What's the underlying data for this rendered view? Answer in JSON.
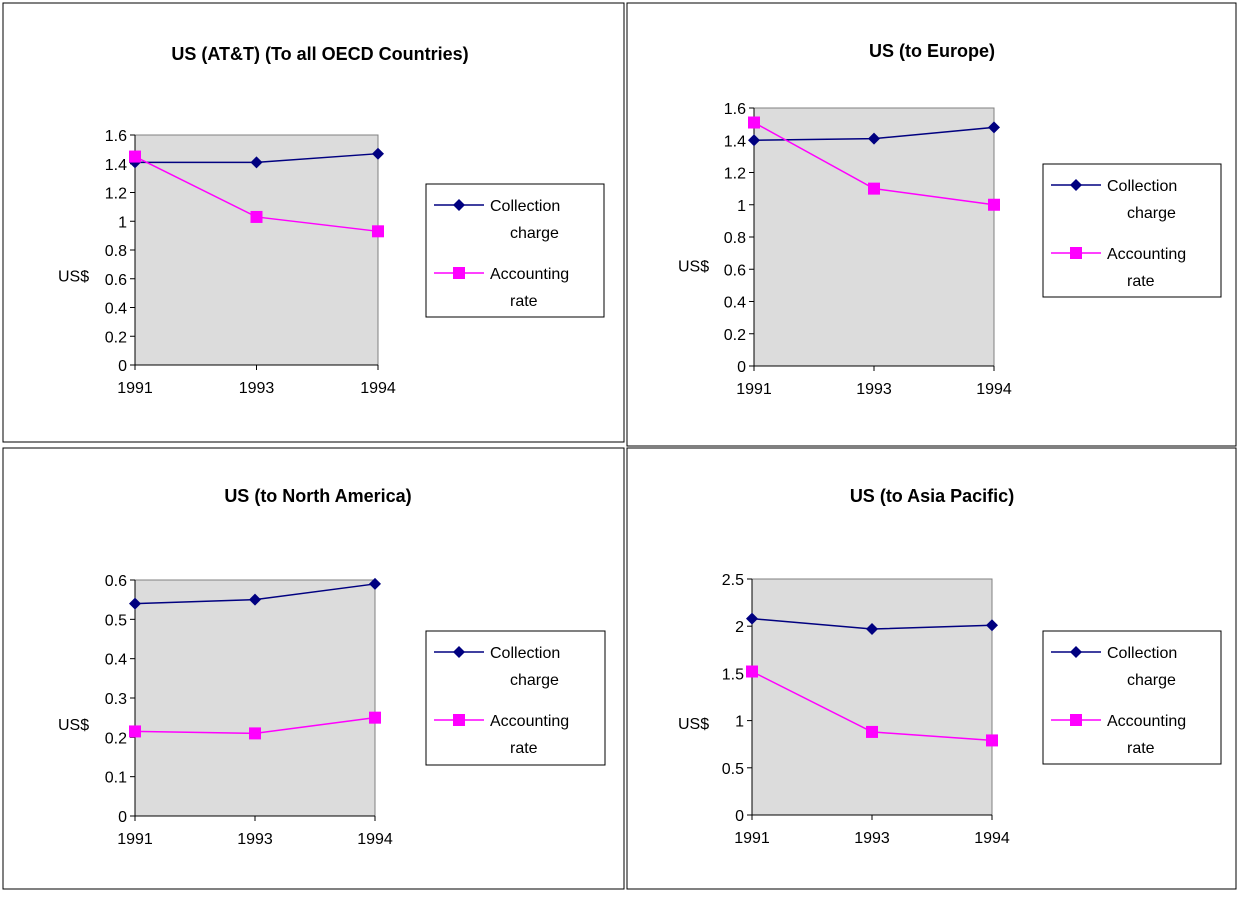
{
  "chart_data": [
    {
      "type": "line",
      "title": "US (AT&T) (To all OECD Countries)",
      "ylabel": "US$",
      "categories": [
        "1991",
        "1993",
        "1994"
      ],
      "ylim": [
        0,
        1.6
      ],
      "yticks": [
        "0",
        "0.2",
        "0.4",
        "0.6",
        "0.8",
        "1",
        "1.2",
        "1.4",
        "1.6"
      ],
      "series": [
        {
          "name": "Collection charge",
          "values": [
            1.41,
            1.41,
            1.47
          ],
          "color": "#000080",
          "marker": "diamond"
        },
        {
          "name": "Accounting rate",
          "values": [
            1.45,
            1.03,
            0.93
          ],
          "color": "#FF00FF",
          "marker": "square"
        }
      ],
      "legend_lines": [
        [
          "Collection",
          "charge"
        ],
        [
          "Accounting",
          "rate"
        ]
      ],
      "legend": "right"
    },
    {
      "type": "line",
      "title": "US (to Europe)",
      "ylabel": "US$",
      "categories": [
        "1991",
        "1993",
        "1994"
      ],
      "ylim": [
        0,
        1.6
      ],
      "yticks": [
        "0",
        "0.2",
        "0.4",
        "0.6",
        "0.8",
        "1",
        "1.2",
        "1.4",
        "1.6"
      ],
      "series": [
        {
          "name": "Collection charge",
          "values": [
            1.4,
            1.41,
            1.48
          ],
          "color": "#000080",
          "marker": "diamond"
        },
        {
          "name": "Accounting rate",
          "values": [
            1.51,
            1.1,
            1.0
          ],
          "color": "#FF00FF",
          "marker": "square"
        }
      ],
      "legend_lines": [
        [
          "Collection",
          "charge"
        ],
        [
          "Accounting",
          "rate"
        ]
      ],
      "legend": "right"
    },
    {
      "type": "line",
      "title": "US (to North America)",
      "ylabel": "US$",
      "categories": [
        "1991",
        "1993",
        "1994"
      ],
      "ylim": [
        0,
        0.6
      ],
      "yticks": [
        "0",
        "0.1",
        "0.2",
        "0.3",
        "0.4",
        "0.5",
        "0.6"
      ],
      "series": [
        {
          "name": "Collection charge",
          "values": [
            0.54,
            0.55,
            0.59
          ],
          "color": "#000080",
          "marker": "diamond"
        },
        {
          "name": "Accounting rate",
          "values": [
            0.215,
            0.21,
            0.25
          ],
          "color": "#FF00FF",
          "marker": "square"
        }
      ],
      "legend_lines": [
        [
          "Collection",
          "charge"
        ],
        [
          "Accounting",
          "rate"
        ]
      ],
      "legend": "right"
    },
    {
      "type": "line",
      "title": "US (to Asia Pacific)",
      "ylabel": "US$",
      "categories": [
        "1991",
        "1993",
        "1994"
      ],
      "ylim": [
        0,
        2.5
      ],
      "yticks": [
        "0",
        "0.5",
        "1",
        "1.5",
        "2",
        "2.5"
      ],
      "series": [
        {
          "name": "Collection charge",
          "values": [
            2.08,
            1.97,
            2.01
          ],
          "color": "#000080",
          "marker": "diamond"
        },
        {
          "name": "Accounting rate",
          "values": [
            1.52,
            0.88,
            0.79
          ],
          "color": "#FF00FF",
          "marker": "square"
        }
      ],
      "legend_lines": [
        [
          "Collection",
          "charge"
        ],
        [
          "Accounting",
          "rate"
        ]
      ],
      "legend": "right"
    }
  ]
}
